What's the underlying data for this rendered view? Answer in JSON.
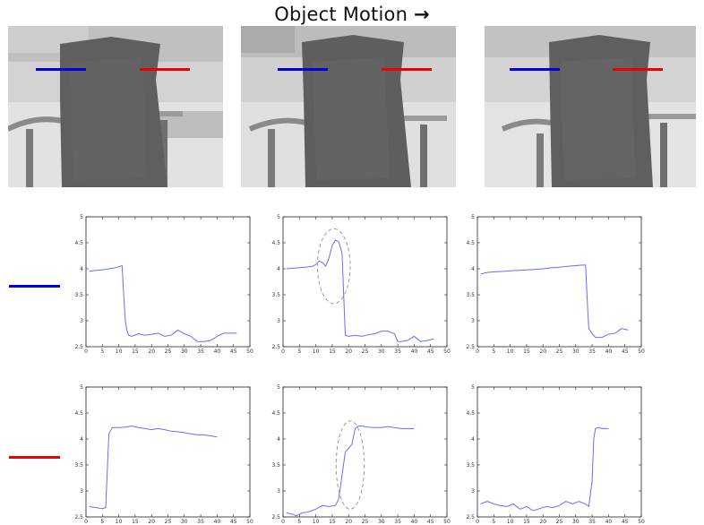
{
  "header": {
    "title": "Object Motion",
    "arrow": "→"
  },
  "colors": {
    "blue_line": "#0000dd",
    "red_line": "#ee0000",
    "plot_line": "#6b6bff",
    "ellipse": "#9a9a9a"
  },
  "frames": [
    {
      "name": "frame-1"
    },
    {
      "name": "frame-2"
    },
    {
      "name": "frame-3"
    }
  ],
  "legend": [
    {
      "name": "blue-series-swatch",
      "color": "#0000dd"
    },
    {
      "name": "red-series-swatch",
      "color": "#ee0000"
    }
  ],
  "chart_data": [
    {
      "type": "line",
      "row": "blue",
      "col": 1,
      "xlim": [
        0,
        50
      ],
      "ylim": [
        2.5,
        5
      ],
      "xticks": [
        0,
        5,
        10,
        15,
        20,
        25,
        30,
        35,
        40,
        45,
        50
      ],
      "yticks": [
        2.5,
        3,
        3.5,
        4,
        4.5,
        5
      ],
      "series": [
        {
          "x": [
            1,
            3,
            5,
            7,
            9,
            10,
            11,
            11.5,
            12,
            12.5,
            13,
            14,
            16,
            18,
            20,
            22,
            24,
            26,
            28,
            30,
            32,
            34,
            36,
            38,
            40,
            42,
            44,
            46
          ],
          "y": [
            3.95,
            3.97,
            3.98,
            4.0,
            4.02,
            4.04,
            4.06,
            3.5,
            3.0,
            2.8,
            2.72,
            2.7,
            2.75,
            2.72,
            2.74,
            2.76,
            2.7,
            2.72,
            2.82,
            2.75,
            2.7,
            2.6,
            2.6,
            2.62,
            2.7,
            2.76,
            2.76,
            2.76
          ]
        }
      ],
      "ellipse": null
    },
    {
      "type": "line",
      "row": "blue",
      "col": 2,
      "xlim": [
        0,
        50
      ],
      "ylim": [
        2.5,
        5
      ],
      "xticks": [
        0,
        5,
        10,
        15,
        20,
        25,
        30,
        35,
        40,
        45,
        50
      ],
      "yticks": [
        2.5,
        3,
        3.5,
        4,
        4.5,
        5
      ],
      "series": [
        {
          "x": [
            1,
            3,
            5,
            7,
            9,
            10,
            11,
            12,
            13,
            14,
            15,
            16,
            17,
            18,
            18.5,
            19,
            20,
            22,
            24,
            26,
            28,
            30,
            32,
            34,
            35,
            36,
            38,
            40,
            42,
            44,
            46
          ],
          "y": [
            4.0,
            4.01,
            4.02,
            4.03,
            4.05,
            4.08,
            4.15,
            4.12,
            4.05,
            4.2,
            4.45,
            4.55,
            4.52,
            4.3,
            3.5,
            2.72,
            2.7,
            2.72,
            2.7,
            2.73,
            2.75,
            2.8,
            2.8,
            2.75,
            2.6,
            2.6,
            2.62,
            2.7,
            2.6,
            2.62,
            2.65
          ]
        }
      ],
      "ellipse": {
        "cx": 15.5,
        "cy": 4.05,
        "rx": 5,
        "ry": 0.72
      }
    },
    {
      "type": "line",
      "row": "blue",
      "col": 3,
      "xlim": [
        0,
        50
      ],
      "ylim": [
        2.5,
        5
      ],
      "xticks": [
        0,
        5,
        10,
        15,
        20,
        25,
        30,
        35,
        40,
        45,
        50
      ],
      "yticks": [
        2.5,
        3,
        3.5,
        4,
        4.5,
        5
      ],
      "series": [
        {
          "x": [
            1,
            3,
            5,
            8,
            10,
            13,
            15,
            18,
            20,
            23,
            25,
            28,
            30,
            32,
            33,
            33.5,
            34,
            35,
            36,
            38,
            40,
            42,
            44,
            46
          ],
          "y": [
            3.9,
            3.93,
            3.94,
            3.95,
            3.96,
            3.97,
            3.98,
            3.99,
            4.0,
            4.02,
            4.03,
            4.05,
            4.06,
            4.07,
            4.07,
            3.4,
            2.85,
            2.75,
            2.68,
            2.68,
            2.74,
            2.76,
            2.85,
            2.82
          ]
        }
      ],
      "ellipse": null
    },
    {
      "type": "line",
      "row": "red",
      "col": 1,
      "xlim": [
        0,
        50
      ],
      "ylim": [
        2.5,
        5
      ],
      "xticks": [
        0,
        5,
        10,
        15,
        20,
        25,
        30,
        35,
        40,
        45,
        50
      ],
      "yticks": [
        2.5,
        3,
        3.5,
        4,
        4.5,
        5
      ],
      "series": [
        {
          "x": [
            1,
            3,
            5,
            6,
            6.5,
            7,
            8,
            10,
            12,
            14,
            16,
            18,
            20,
            22,
            24,
            26,
            28,
            30,
            32,
            34,
            36,
            38,
            40
          ],
          "y": [
            2.7,
            2.68,
            2.66,
            2.68,
            3.4,
            4.1,
            4.22,
            4.22,
            4.23,
            4.25,
            4.22,
            4.2,
            4.18,
            4.2,
            4.18,
            4.15,
            4.14,
            4.12,
            4.1,
            4.08,
            4.08,
            4.06,
            4.04
          ]
        }
      ],
      "ellipse": null
    },
    {
      "type": "line",
      "row": "red",
      "col": 2,
      "xlim": [
        0,
        50
      ],
      "ylim": [
        2.5,
        5
      ],
      "xticks": [
        0,
        5,
        10,
        15,
        20,
        25,
        30,
        35,
        40,
        45,
        50
      ],
      "yticks": [
        2.5,
        3,
        3.5,
        4,
        4.5,
        5
      ],
      "series": [
        {
          "x": [
            1,
            3,
            4,
            6,
            8,
            10,
            12,
            14,
            16,
            17,
            18,
            19,
            20,
            21,
            22,
            23,
            24,
            26,
            28,
            30,
            32,
            34,
            36,
            38,
            40
          ],
          "y": [
            2.58,
            2.55,
            2.52,
            2.58,
            2.6,
            2.65,
            2.72,
            2.7,
            2.72,
            2.85,
            3.3,
            3.75,
            3.82,
            3.9,
            4.2,
            4.25,
            4.25,
            4.23,
            4.22,
            4.22,
            4.24,
            4.22,
            4.2,
            4.2,
            4.2
          ]
        }
      ],
      "ellipse": {
        "cx": 20.5,
        "cy": 3.5,
        "rx": 4.3,
        "ry": 0.85
      }
    },
    {
      "type": "line",
      "row": "red",
      "col": 3,
      "xlim": [
        0,
        50
      ],
      "ylim": [
        2.5,
        5
      ],
      "xticks": [
        0,
        5,
        10,
        15,
        20,
        25,
        30,
        35,
        40,
        45,
        50
      ],
      "yticks": [
        2.5,
        3,
        3.5,
        4,
        4.5,
        5
      ],
      "series": [
        {
          "x": [
            1,
            3,
            5,
            7,
            9,
            11,
            13,
            15,
            17,
            19,
            21,
            23,
            25,
            27,
            29,
            31,
            33,
            34,
            35,
            35.5,
            36,
            37,
            38,
            40
          ],
          "y": [
            2.75,
            2.8,
            2.75,
            2.72,
            2.7,
            2.75,
            2.65,
            2.7,
            2.62,
            2.66,
            2.7,
            2.68,
            2.72,
            2.8,
            2.75,
            2.8,
            2.75,
            2.7,
            3.2,
            4.0,
            4.2,
            4.22,
            4.2,
            4.2
          ]
        }
      ],
      "ellipse": null
    }
  ]
}
